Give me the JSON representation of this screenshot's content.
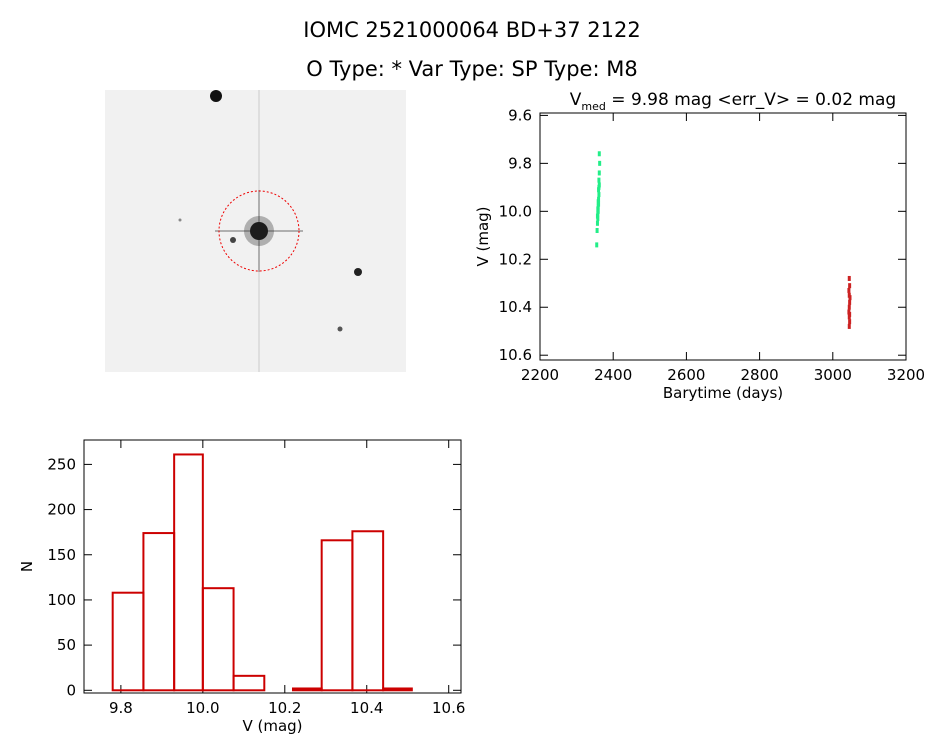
{
  "header": {
    "line1": "IOMC 2521000064    BD+37  2122",
    "line2": "O Type: *   Var Type:    SP Type: M8"
  },
  "chart_data": [
    {
      "type": "scatter",
      "title": "V",
      "title_subscript": "med",
      "title_rest": " = 9.98 mag  <err_V> = 0.02 mag",
      "x_label": "Barytime (days)",
      "y_label": "V (mag)",
      "xlim": [
        2200,
        3200
      ],
      "xticks": [
        2200,
        2400,
        2600,
        2800,
        3000,
        3200
      ],
      "ylim": [
        10.62,
        9.59
      ],
      "yticks": [
        9.6,
        9.8,
        {
          "value": 10,
          "label": "10.0"
        },
        10.2,
        10.4,
        10.6
      ],
      "series": [
        {
          "color": "#22ee88",
          "x": [
            2362,
            2363,
            2362,
            2361,
            2362,
            2361,
            2360,
            2361,
            2360,
            2359,
            2360,
            2359,
            2358,
            2359,
            2358,
            2357,
            2358,
            2357,
            2356,
            2355
          ],
          "values": [
            9.76,
            9.8,
            9.84,
            9.87,
            9.89,
            9.9,
            9.91,
            9.93,
            9.95,
            9.96,
            9.97,
            9.98,
            9.99,
            10.0,
            10.01,
            10.02,
            10.03,
            10.05,
            10.08,
            10.14
          ]
        },
        {
          "color": "#cc2222",
          "x": [
            3045,
            3046,
            3044,
            3045,
            3047,
            3046,
            3045,
            3044,
            3046,
            3045,
            3046,
            3045
          ],
          "values": [
            10.28,
            10.31,
            10.33,
            10.35,
            10.36,
            10.38,
            10.4,
            10.42,
            10.43,
            10.44,
            10.46,
            10.48
          ]
        }
      ]
    },
    {
      "type": "histogram",
      "x_label": "V (mag)",
      "y_label": "N",
      "color": "#cc0000",
      "bins": [
        9.78,
        9.855,
        9.93,
        10.0,
        10.075,
        10.15,
        10.22,
        10.29,
        10.365,
        10.44,
        10.51
      ],
      "values": [
        108,
        174,
        261,
        113,
        16,
        0,
        2,
        166,
        176,
        2
      ],
      "xlim": [
        9.71,
        10.63
      ],
      "xticks": [
        9.8,
        {
          "value": 10,
          "label": "10.0"
        },
        10.2,
        10.4,
        10.6
      ],
      "ylim": [
        -3,
        277
      ],
      "yticks": [
        0,
        50,
        100,
        150,
        200,
        250
      ]
    }
  ]
}
